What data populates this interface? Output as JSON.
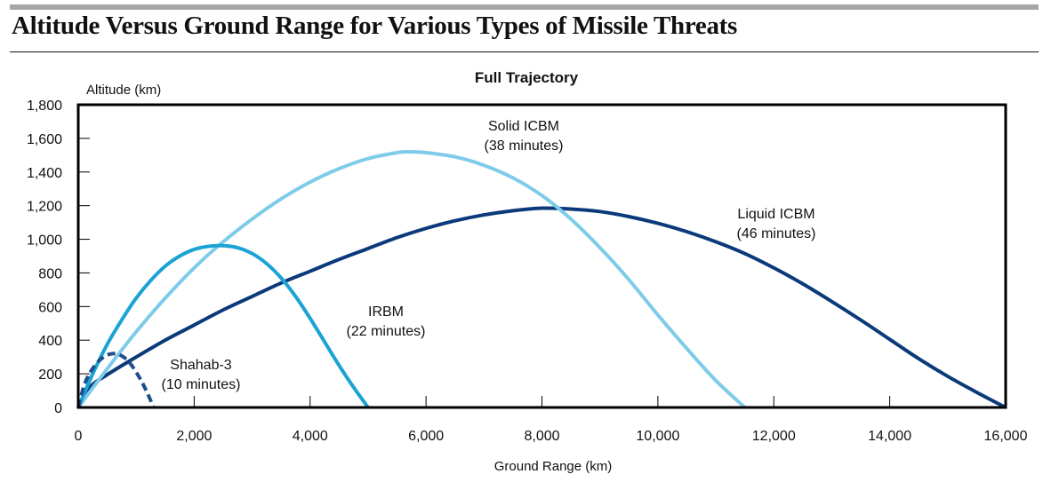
{
  "header": {
    "title": "Altitude Versus Ground Range for Various Types of Missile Threats"
  },
  "chart_data": {
    "type": "line",
    "title": "Full Trajectory",
    "xlabel": "Ground Range (km)",
    "ylabel": "Altitude (km)",
    "xlim": [
      0,
      16000
    ],
    "ylim": [
      0,
      1800
    ],
    "xticks": [
      0,
      2000,
      4000,
      6000,
      8000,
      10000,
      12000,
      14000,
      16000
    ],
    "xtick_labels": [
      "0",
      "2,000",
      "4,000",
      "6,000",
      "8,000",
      "10,000",
      "12,000",
      "14,000",
      "16,000"
    ],
    "yticks": [
      0,
      200,
      400,
      600,
      800,
      1000,
      1200,
      1400,
      1600,
      1800
    ],
    "ytick_labels": [
      "0",
      "200",
      "400",
      "600",
      "800",
      "1,000",
      "1,200",
      "1,400",
      "1,600",
      "1,800"
    ],
    "grid": false,
    "legend": "none (direct labels)",
    "series": [
      {
        "name": "Shahab-3",
        "label_line1": "Shahab-3",
        "label_line2": "(10 minutes)",
        "color": "#1f4e8c",
        "style": "dashed",
        "x": [
          0,
          100,
          200,
          300,
          400,
          500,
          600,
          700,
          800,
          900,
          1000,
          1100,
          1200,
          1300
        ],
        "y": [
          0,
          130,
          205,
          255,
          290,
          312,
          320,
          315,
          295,
          260,
          210,
          150,
          80,
          0
        ]
      },
      {
        "name": "IRBM",
        "label_line1": "IRBM",
        "label_line2": "(22 minutes)",
        "color": "#1aa3d4",
        "style": "solid",
        "x": [
          0,
          250,
          500,
          750,
          1000,
          1250,
          1500,
          1750,
          2000,
          2250,
          2500,
          2750,
          3000,
          3250,
          3500,
          3750,
          4000,
          4250,
          4500,
          4750,
          5000
        ],
        "y": [
          0,
          200,
          375,
          520,
          650,
          755,
          840,
          900,
          940,
          958,
          962,
          950,
          915,
          855,
          770,
          660,
          530,
          390,
          250,
          120,
          0
        ]
      },
      {
        "name": "Solid ICBM",
        "label_line1": "Solid ICBM",
        "label_line2": "(38 minutes)",
        "color": "#7ecbea",
        "style": "solid",
        "x": [
          0,
          500,
          1000,
          1500,
          2000,
          2500,
          3000,
          3500,
          4000,
          4500,
          5000,
          5500,
          5700,
          6000,
          6500,
          7000,
          7500,
          8000,
          8500,
          9000,
          9500,
          10000,
          10500,
          11000,
          11500
        ],
        "y": [
          0,
          230,
          450,
          650,
          830,
          985,
          1120,
          1240,
          1340,
          1420,
          1480,
          1515,
          1520,
          1515,
          1490,
          1440,
          1365,
          1260,
          1120,
          950,
          760,
          550,
          350,
          160,
          0
        ]
      },
      {
        "name": "Liquid ICBM",
        "label_line1": "Liquid ICBM",
        "label_line2": "(46 minutes)",
        "color": "#0b3a7a",
        "style": "solid",
        "x": [
          0,
          200,
          500,
          1000,
          1500,
          2000,
          2500,
          3000,
          3500,
          4000,
          4500,
          5000,
          5500,
          6000,
          6500,
          7000,
          7500,
          8000,
          8500,
          9000,
          9500,
          10000,
          10500,
          11000,
          11500,
          12000,
          12500,
          13000,
          13500,
          14000,
          14500,
          15000,
          15500,
          16000
        ],
        "y": [
          0,
          120,
          195,
          300,
          400,
          490,
          580,
          660,
          740,
          810,
          880,
          945,
          1010,
          1065,
          1110,
          1145,
          1170,
          1185,
          1180,
          1165,
          1135,
          1095,
          1045,
          985,
          915,
          830,
          735,
          630,
          520,
          405,
          290,
          185,
          90,
          0
        ]
      }
    ]
  }
}
